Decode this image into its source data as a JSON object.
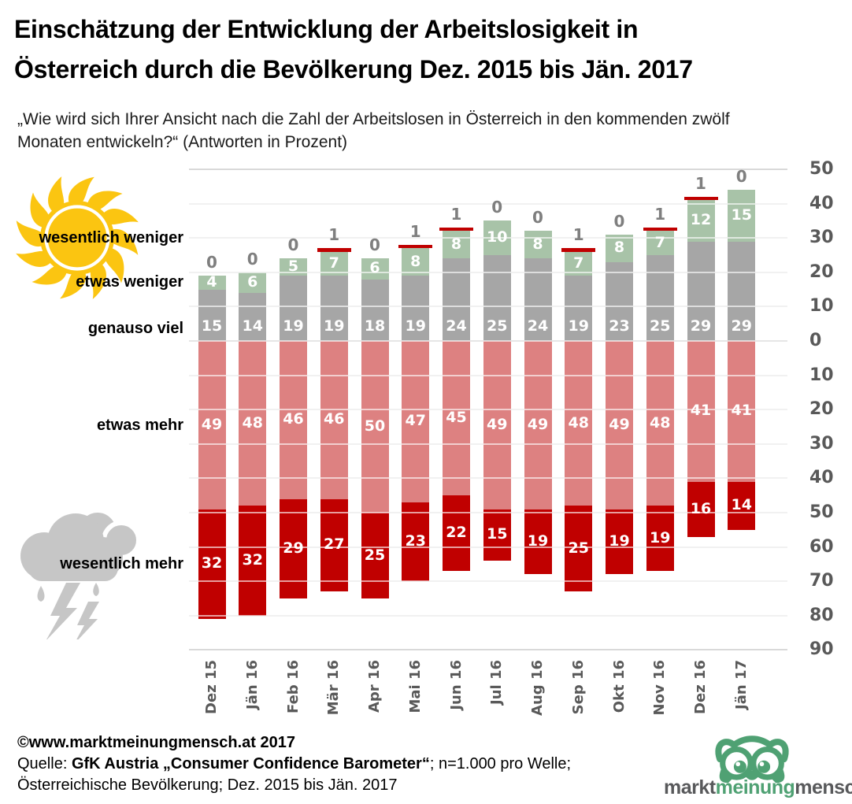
{
  "title": {
    "line1": "Einschätzung der Entwicklung der Arbeitslosigkeit in",
    "line2": "Österreich durch die Bevölkerung Dez. 2015 bis Jän. 2017"
  },
  "subtitle": "„Wie wird sich Ihrer Ansicht nach die Zahl der Arbeitslosen in Österreich in den kommenden zwölf Monaten entwickeln?“ (Antworten in Prozent)",
  "chart_data": {
    "type": "bar",
    "variant": "diverging-stacked",
    "unit": "percent",
    "categories": [
      "Dez 15",
      "Jän 16",
      "Feb 16",
      "Mär 16",
      "Apr 16",
      "Mai 16",
      "Jun 16",
      "Jul 16",
      "Aug 16",
      "Sep 16",
      "Okt 16",
      "Nov 16",
      "Dez 16",
      "Jän 17"
    ],
    "series": [
      {
        "name": "wesentlich weniger",
        "direction": "up",
        "style": "cap",
        "color": "#c00000",
        "label_color": "#7f7f7f",
        "values": [
          0,
          0,
          0,
          1,
          0,
          1,
          1,
          0,
          0,
          1,
          0,
          1,
          1,
          0
        ]
      },
      {
        "name": "etwas weniger",
        "direction": "up",
        "color": "#a8c3a8",
        "label_color": "#ffffff",
        "values": [
          4,
          6,
          5,
          7,
          6,
          8,
          8,
          10,
          8,
          7,
          8,
          7,
          12,
          15
        ]
      },
      {
        "name": "genauso viel",
        "direction": "up",
        "color": "#a6a6a6",
        "label_color": "#ffffff",
        "values": [
          15,
          14,
          19,
          19,
          18,
          19,
          24,
          25,
          24,
          19,
          23,
          25,
          29,
          29
        ]
      },
      {
        "name": "etwas mehr",
        "direction": "down",
        "color": "#dd8181",
        "label_color": "#ffffff",
        "values": [
          49,
          48,
          46,
          46,
          50,
          47,
          45,
          49,
          49,
          48,
          49,
          48,
          41,
          41
        ]
      },
      {
        "name": "wesentlich mehr",
        "direction": "down",
        "color": "#c00000",
        "label_color": "#ffffff",
        "values": [
          32,
          32,
          29,
          27,
          25,
          23,
          22,
          15,
          19,
          25,
          19,
          19,
          16,
          14
        ]
      }
    ],
    "y_axis_right": {
      "upper_ticks": [
        50,
        40,
        30,
        20,
        10,
        0
      ],
      "lower_ticks": [
        10,
        20,
        30,
        40,
        50,
        60,
        70,
        80,
        90
      ]
    },
    "gridlines": true,
    "legend_position": "left-category-labels"
  },
  "footer": {
    "copyright": "©www.marktmeinungmensch.at 2017",
    "source_prefix": "Quelle: ",
    "source_bold": "GfK Austria „Consumer Confidence Barometer“",
    "source_suffix": "; n=1.000 pro Welle;",
    "source_line2": "Österreichische Bevölkerung; Dez. 2015 bis Jän. 2017"
  },
  "logo": {
    "part1": "markt",
    "part2": "meinung",
    "part3": "mensch",
    "accent_color": "#4fa173",
    "text_color": "#58595b"
  },
  "icons": {
    "sun_color": "#fbc511",
    "cloud_color": "#c6c6c6"
  }
}
